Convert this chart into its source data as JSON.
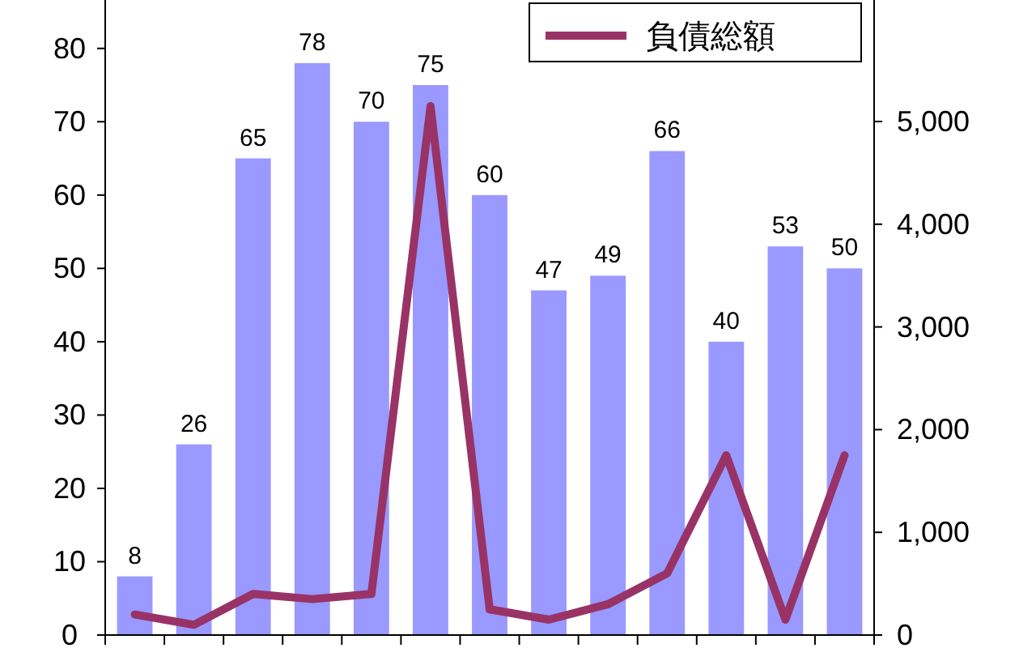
{
  "chart_data": {
    "type": "bar",
    "categories": [
      null,
      null,
      null,
      null,
      null,
      null,
      null,
      null,
      null,
      null,
      null,
      null,
      null
    ],
    "series": [
      {
        "color": "#9999ff",
        "values": [
          8,
          26,
          65,
          78,
          70,
          75,
          60,
          47,
          49,
          66,
          40,
          53,
          50
        ],
        "value_labels": [
          "8",
          "26",
          "65",
          "78",
          "70",
          "75",
          "60",
          "47",
          "49",
          "66",
          "40",
          "53",
          "50"
        ]
      },
      {
        "type": "line",
        "axis": "y2",
        "name": "負債総額",
        "color": "#993366",
        "values": [
          200,
          100,
          400,
          350,
          400,
          5150,
          250,
          150,
          300,
          600,
          1750,
          150,
          1750
        ]
      }
    ],
    "ylim": [
      0,
      86.6
    ],
    "yticks": [
      0,
      10,
      20,
      30,
      40,
      50,
      60,
      70,
      80
    ],
    "y2lim": [
      0,
      6183
    ],
    "y2ticks": [
      {
        "value": 0,
        "label": "0"
      },
      {
        "value": 1000,
        "label": "1,000"
      },
      {
        "value": 2000,
        "label": "2,000"
      },
      {
        "value": 3000,
        "label": "3,000"
      },
      {
        "value": 4000,
        "label": "4,000"
      },
      {
        "value": 5000,
        "label": "5,000"
      }
    ],
    "grid": false,
    "legend": "top right"
  }
}
